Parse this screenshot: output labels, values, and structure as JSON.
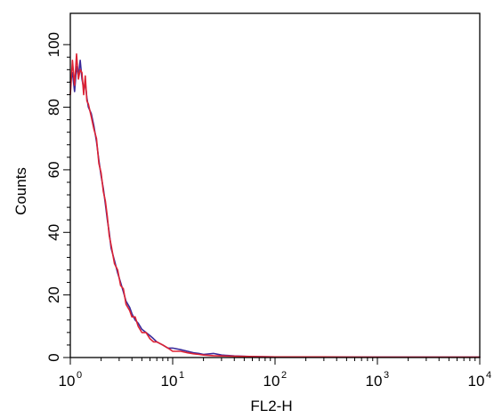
{
  "chart_data": {
    "type": "line",
    "title": "",
    "xlabel": "FL2-H",
    "ylabel": "Counts",
    "xscale": "log",
    "xlim": [
      1,
      10000
    ],
    "ylim": [
      0,
      110
    ],
    "grid": false,
    "legend": "none",
    "x_ticks": [
      {
        "value": 1,
        "base": "10",
        "exp": "0"
      },
      {
        "value": 10,
        "base": "10",
        "exp": "1"
      },
      {
        "value": 100,
        "base": "10",
        "exp": "2"
      },
      {
        "value": 1000,
        "base": "10",
        "exp": "3"
      },
      {
        "value": 10000,
        "base": "10",
        "exp": "4"
      }
    ],
    "y_ticks": [
      {
        "value": 0,
        "label": "0"
      },
      {
        "value": 20,
        "label": "20"
      },
      {
        "value": 40,
        "label": "40"
      },
      {
        "value": 60,
        "label": "60"
      },
      {
        "value": 80,
        "label": "80"
      },
      {
        "value": 100,
        "label": "100"
      }
    ],
    "series": [
      {
        "color": "#3a2a9a",
        "x": [
          1.0,
          1.05,
          1.1,
          1.15,
          1.2,
          1.25,
          1.3,
          1.35,
          1.4,
          1.45,
          1.5,
          1.6,
          1.7,
          1.8,
          1.9,
          2.0,
          2.1,
          2.2,
          2.3,
          2.4,
          2.5,
          2.7,
          2.9,
          3.1,
          3.3,
          3.5,
          3.8,
          4.0,
          4.3,
          4.6,
          5.0,
          5.5,
          6.0,
          6.5,
          7.0,
          8.0,
          9.0,
          10.0,
          12.0,
          14.0,
          16.0,
          18.0,
          20.0,
          25.0,
          30.0,
          40.0,
          60.0,
          100.0,
          300.0,
          1000.0,
          10000.0
        ],
        "y": [
          88,
          91,
          85,
          93,
          90,
          95,
          89,
          86,
          88,
          83,
          80,
          78,
          74,
          69,
          63,
          58,
          54,
          49,
          44,
          40,
          35,
          31,
          27,
          24,
          21,
          18,
          16,
          14,
          12,
          11,
          9,
          8,
          7,
          6,
          5,
          4,
          3,
          3,
          2.5,
          2,
          1.5,
          1.3,
          1,
          1.3,
          0.8,
          0.5,
          0.3,
          0.2,
          0.1,
          0.1,
          0.1
        ]
      },
      {
        "color": "#dd2233",
        "x": [
          1.0,
          1.05,
          1.1,
          1.15,
          1.2,
          1.25,
          1.3,
          1.35,
          1.4,
          1.45,
          1.5,
          1.6,
          1.7,
          1.8,
          1.9,
          2.0,
          2.1,
          2.2,
          2.3,
          2.4,
          2.5,
          2.7,
          2.9,
          3.1,
          3.3,
          3.5,
          3.8,
          4.0,
          4.3,
          4.6,
          5.0,
          5.5,
          6.0,
          6.5,
          7.0,
          8.0,
          9.0,
          10.0,
          12.0,
          14.0,
          16.0,
          18.0,
          20.0,
          25.0,
          30.0,
          40.0,
          60.0,
          100.0,
          300.0,
          1000.0,
          10000.0
        ],
        "y": [
          84,
          95,
          87,
          97,
          89,
          92,
          91,
          84,
          90,
          82,
          81,
          77,
          73,
          70,
          62,
          59,
          53,
          50,
          45,
          39,
          36,
          30,
          28,
          23,
          22,
          17,
          15,
          13,
          13,
          10,
          8,
          8,
          6,
          5,
          5,
          4,
          3,
          2,
          2,
          1.5,
          1.2,
          1,
          0.8,
          0.6,
          0.5,
          0.4,
          0.3,
          0.2,
          0.2,
          0.1,
          0.1
        ]
      }
    ]
  }
}
